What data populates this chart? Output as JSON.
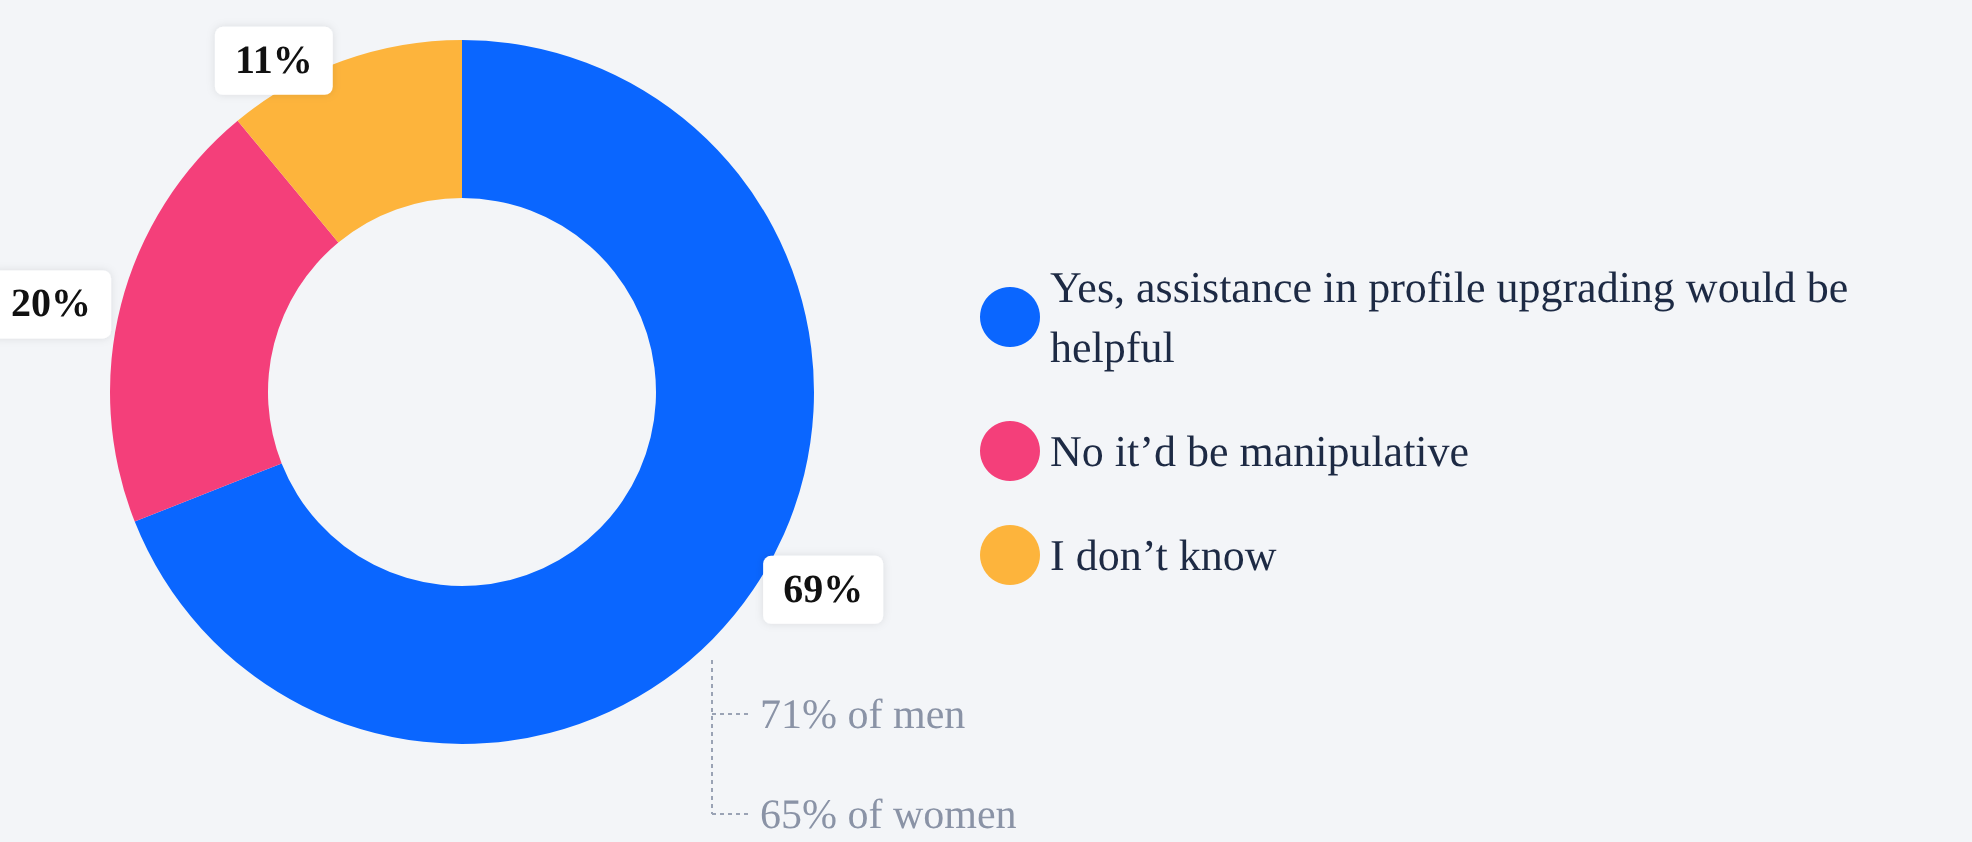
{
  "chart_data": {
    "type": "donut",
    "categories": [
      "Yes, assistance in profile upgrading would be helpful",
      "No it’d be manipulative",
      "I don’t know"
    ],
    "values": [
      69,
      20,
      11
    ],
    "value_labels": [
      "69%",
      "20%",
      "11%"
    ],
    "colors": [
      "#0a66ff",
      "#f43f7a",
      "#fdb43c"
    ],
    "legend": "right",
    "annotations": [
      "71% of men",
      "65% of women"
    ]
  }
}
